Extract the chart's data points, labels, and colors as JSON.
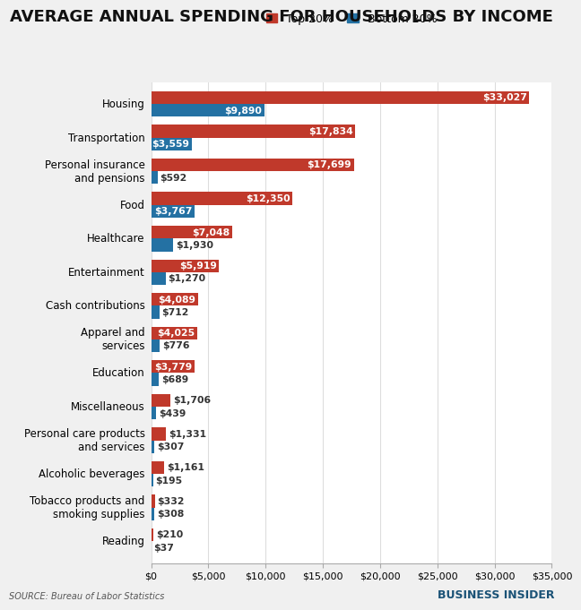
{
  "title": "AVERAGE ANNUAL SPENDING FOR HOUSEHOLDS BY INCOME",
  "categories": [
    "Housing",
    "Transportation",
    "Personal insurance\nand pensions",
    "Food",
    "Healthcare",
    "Entertainment",
    "Cash contributions",
    "Apparel and\nservices",
    "Education",
    "Miscellaneous",
    "Personal care products\nand services",
    "Alcoholic beverages",
    "Tobacco products and\nsmoking supplies",
    "Reading"
  ],
  "top20": [
    33027,
    17834,
    17699,
    12350,
    7048,
    5919,
    4089,
    4025,
    3779,
    1706,
    1331,
    1161,
    332,
    210
  ],
  "bottom20": [
    9890,
    3559,
    592,
    3767,
    1930,
    1270,
    712,
    776,
    689,
    439,
    307,
    195,
    308,
    37
  ],
  "top20_color": "#C0392B",
  "bottom20_color": "#2471A3",
  "bg_color": "#F0F0F0",
  "plot_bg_color": "#FFFFFF",
  "xlim": [
    0,
    35000
  ],
  "xticks": [
    0,
    5000,
    10000,
    15000,
    20000,
    25000,
    30000,
    35000
  ],
  "xtick_labels": [
    "$0",
    "$5,000",
    "$10,000",
    "$15,000",
    "$20,000",
    "$25,000",
    "$30,000",
    "$35,000"
  ],
  "source_text": "SOURCE: Bureau of Labor Statistics",
  "brand_text": "BUSINESS INSIDER",
  "legend_top20": "Top 20%",
  "legend_bottom20": "Bottom 20%",
  "bar_height": 0.38,
  "title_fontsize": 13,
  "label_fontsize": 8.5,
  "tick_fontsize": 8,
  "value_fontsize": 7.8,
  "inside_threshold": 2500
}
